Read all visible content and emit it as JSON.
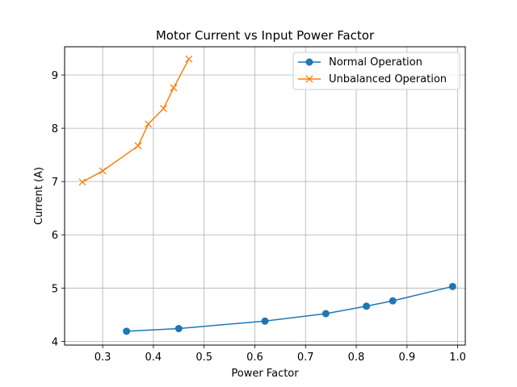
{
  "chart_data": {
    "type": "line",
    "title": "Motor Current vs Input Power Factor",
    "xlabel": "Power Factor",
    "ylabel": "Current (A)",
    "xlim": [
      0.225,
      1.015
    ],
    "ylim": [
      3.93,
      9.53
    ],
    "xticks": [
      0.3,
      0.4,
      0.5,
      0.6,
      0.7,
      0.8,
      0.9,
      1.0
    ],
    "xtick_labels": [
      "0.3",
      "0.4",
      "0.5",
      "0.6",
      "0.7",
      "0.8",
      "0.9",
      "1.0"
    ],
    "yticks": [
      4,
      5,
      6,
      7,
      8,
      9
    ],
    "ytick_labels": [
      "4",
      "5",
      "6",
      "7",
      "8",
      "9"
    ],
    "grid": true,
    "legend_position": "top-right",
    "series": [
      {
        "name": "Normal Operation",
        "color": "#1f77b4",
        "marker": "circle",
        "x": [
          0.347,
          0.45,
          0.62,
          0.74,
          0.82,
          0.872,
          0.99
        ],
        "y": [
          4.19,
          4.24,
          4.38,
          4.52,
          4.66,
          4.76,
          5.03
        ]
      },
      {
        "name": "Unbalanced Operation",
        "color": "#ff7f0e",
        "marker": "x",
        "x": [
          0.26,
          0.3,
          0.37,
          0.39,
          0.42,
          0.44,
          0.47
        ],
        "y": [
          6.99,
          7.2,
          7.67,
          8.08,
          8.37,
          8.76,
          9.3
        ]
      }
    ]
  }
}
